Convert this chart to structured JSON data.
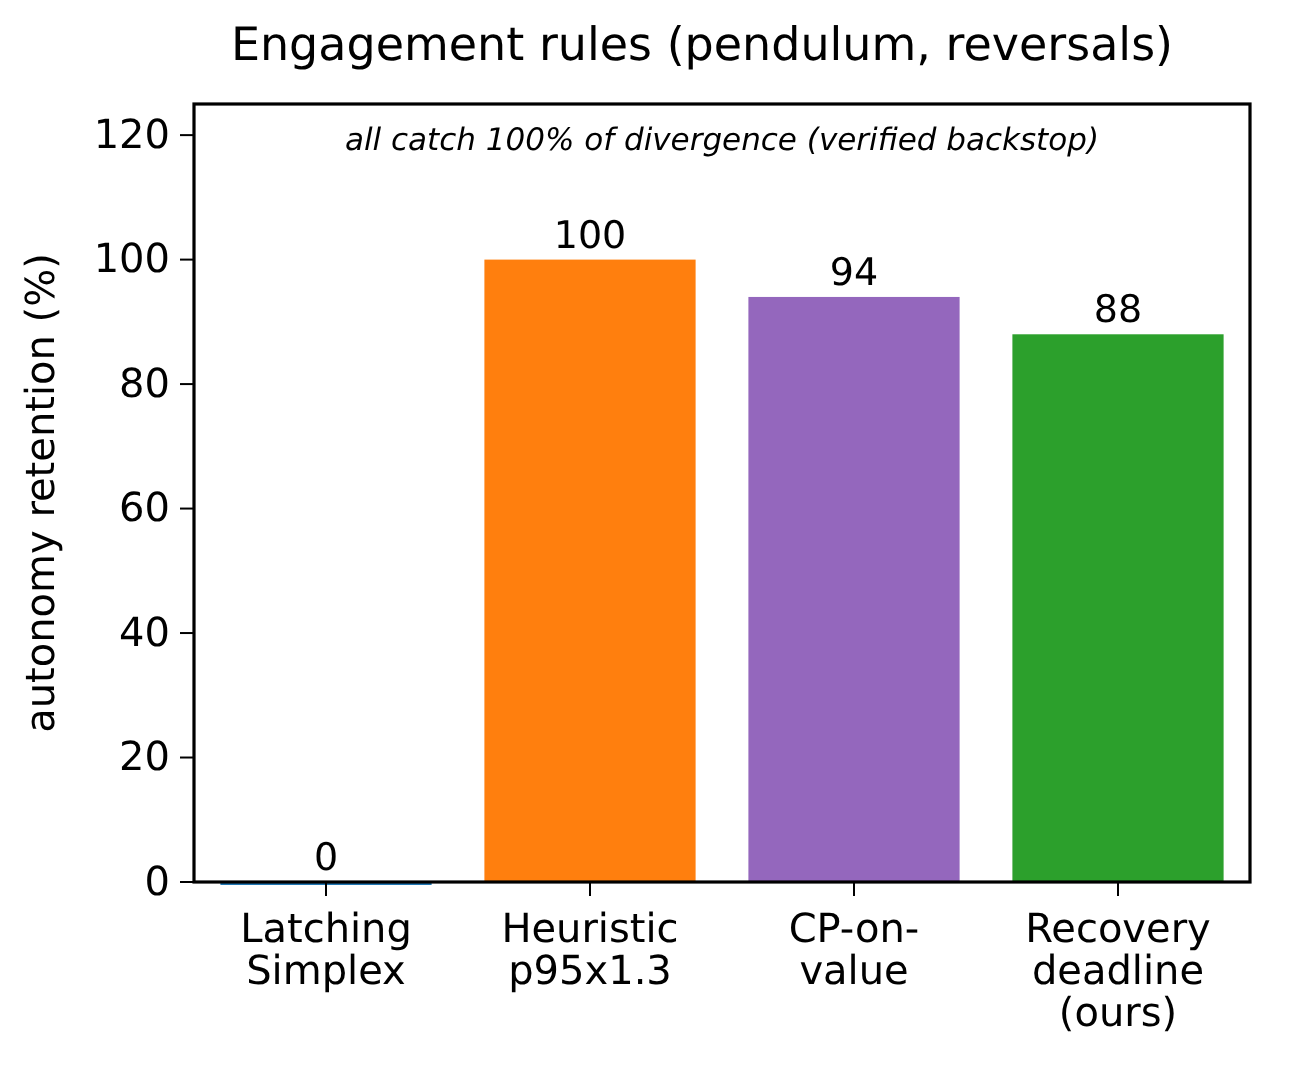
{
  "chart_data": {
    "type": "bar",
    "title": "Engagement rules (pendulum, reversals)",
    "ylabel": "autonomy retention (%)",
    "categories": [
      "Latching\nSimplex",
      "Heuristic\np95x1.3",
      "CP-on-\nvalue",
      "Recovery\ndeadline\n(ours)"
    ],
    "values": [
      0,
      100,
      94,
      88
    ],
    "colors": [
      "#1f77b4",
      "#ff7f0e",
      "#9467bd",
      "#2ca02c"
    ],
    "ylim": [
      0,
      125
    ],
    "yticks": [
      0,
      20,
      40,
      60,
      80,
      100,
      120
    ],
    "data_labels": true,
    "grid": false,
    "annotations": [
      "all catch 100% of divergence (verified backstop)"
    ]
  }
}
